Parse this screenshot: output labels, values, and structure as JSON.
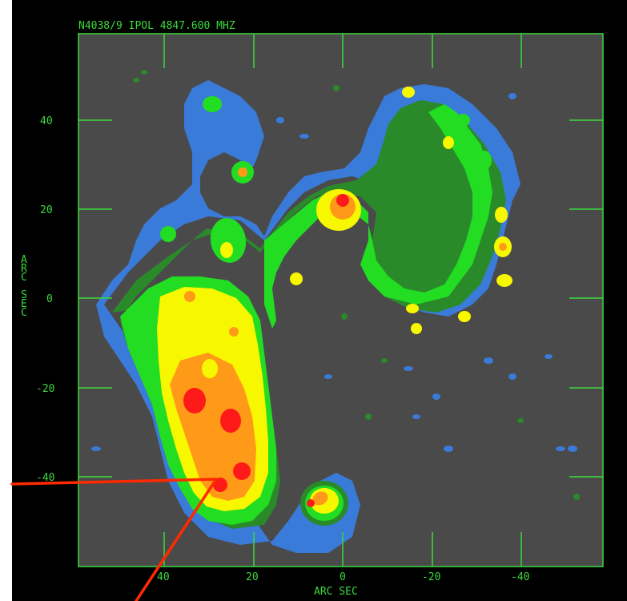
{
  "header": {
    "title": "N4038/9 IPOL   4847.600 MHZ"
  },
  "axes": {
    "x_label": "ARC SEC",
    "y_label": "ARC SEC",
    "x_ticks": [
      "40",
      "20",
      "0",
      "-20",
      "-40"
    ],
    "y_ticks": [
      "40",
      "20",
      "0",
      "-20",
      "-40"
    ]
  },
  "colors": {
    "background": "#000000",
    "plot_bg": "#4a4a4a",
    "axis": "#3bd93b",
    "level_1": "#1a1aa8",
    "level_2": "#3a7ad8",
    "level_3": "#2a8a2a",
    "level_4": "#22dd22",
    "level_5": "#f7f700",
    "level_6": "#ff9a18",
    "level_7": "#ff1a1a",
    "pointer": "#ff2a00"
  }
}
